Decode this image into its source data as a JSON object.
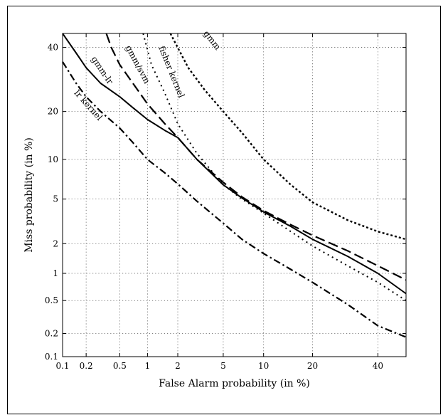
{
  "chart_data": {
    "type": "line",
    "xlabel": "False Alarm probability (in %)",
    "ylabel": "Miss probability (in %)",
    "x_scale": "probit",
    "y_scale": "probit",
    "xlim": [
      0.1,
      50
    ],
    "ylim": [
      0.1,
      45
    ],
    "grid": true,
    "x_ticks": [
      0.1,
      0.2,
      0.5,
      1,
      2,
      5,
      10,
      20,
      40
    ],
    "y_ticks": [
      0.1,
      0.2,
      0.5,
      1,
      2,
      5,
      10,
      20,
      40
    ],
    "x_tick_labels": [
      "0.1",
      "0.2",
      "0.5",
      "1",
      "2",
      "5",
      "10",
      "20",
      "40"
    ],
    "y_tick_labels": [
      "0.1",
      "0.2",
      "0.5",
      "1",
      "2",
      "5",
      "10",
      "20",
      "40"
    ],
    "series": [
      {
        "name": "gmm",
        "style": "dotted-thick",
        "color": "#000000",
        "x": [
          1.7,
          2.5,
          3.5,
          5,
          7,
          10,
          15,
          20,
          30,
          40,
          50
        ],
        "y": [
          45,
          33,
          26,
          20,
          15,
          10,
          6.5,
          4.7,
          3.3,
          2.6,
          2.2
        ]
      },
      {
        "name": "fisher kernel",
        "style": "dotted",
        "color": "#000000",
        "x": [
          0.9,
          1.1,
          1.5,
          2,
          3,
          5,
          7,
          10,
          15,
          20,
          30,
          40,
          50
        ],
        "y": [
          45,
          34,
          25,
          17,
          11,
          6.5,
          5,
          3.8,
          2.6,
          1.9,
          1.2,
          0.8,
          0.5
        ]
      },
      {
        "name": "gmm/svm",
        "style": "long-dash",
        "color": "#000000",
        "x": [
          0.35,
          0.4,
          0.5,
          0.7,
          1,
          1.5,
          2,
          3,
          5,
          7,
          10,
          15,
          20,
          30,
          40,
          50
        ],
        "y": [
          45,
          40,
          34,
          28,
          22,
          17,
          14,
          10,
          6.8,
          5.2,
          4,
          3,
          2.4,
          1.7,
          1.2,
          0.85
        ]
      },
      {
        "name": "gmm-lr",
        "style": "solid",
        "color": "#000000",
        "x": [
          0.1,
          0.15,
          0.2,
          0.3,
          0.5,
          0.7,
          1,
          1.5,
          2,
          3,
          5,
          7,
          10,
          15,
          20,
          30,
          40,
          50
        ],
        "y": [
          45,
          38,
          33,
          28,
          24,
          21,
          18,
          15.5,
          14,
          10,
          6.5,
          5.1,
          3.9,
          2.9,
          2.2,
          1.5,
          1.0,
          0.6
        ]
      },
      {
        "name": "lr kernel",
        "style": "dash-dot",
        "color": "#000000",
        "x": [
          0.1,
          0.15,
          0.2,
          0.3,
          0.5,
          0.7,
          1,
          1.5,
          2,
          3,
          5,
          7,
          10,
          15,
          20,
          30,
          40,
          50
        ],
        "y": [
          35,
          28,
          24,
          20,
          16,
          13,
          10,
          8,
          6.6,
          4.8,
          3.1,
          2.2,
          1.6,
          1.1,
          0.8,
          0.45,
          0.25,
          0.18
        ]
      }
    ]
  }
}
